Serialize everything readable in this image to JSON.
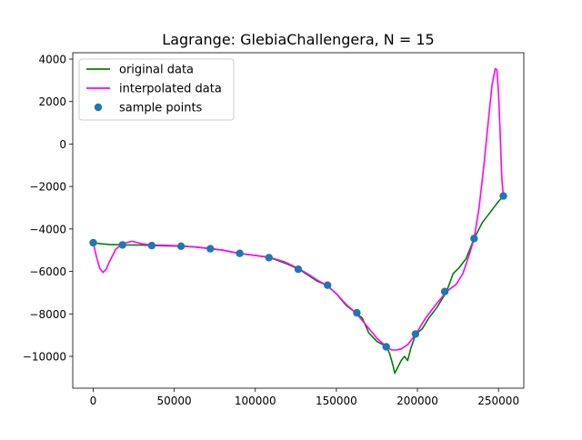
{
  "chart_data": {
    "type": "line",
    "title": "Lagrange: GlebiaChallengera, N = 15",
    "xlabel": "",
    "ylabel": "",
    "xlim": [
      -12600,
      265600
    ],
    "ylim": [
      -11500,
      4300
    ],
    "grid": false,
    "legend_position": "top-left",
    "x_ticks": [
      0,
      50000,
      100000,
      150000,
      200000,
      250000
    ],
    "x_tick_labels": [
      "0",
      "50000",
      "100000",
      "150000",
      "200000",
      "250000"
    ],
    "y_ticks": [
      4000,
      2000,
      0,
      -2000,
      -4000,
      -6000,
      -8000,
      -10000
    ],
    "y_tick_labels": [
      "4000",
      "2000",
      "0",
      "−2000",
      "−4000",
      "−6000",
      "−8000",
      "−10000"
    ],
    "series": [
      {
        "name": "original data",
        "kind": "line",
        "color": "#008000",
        "x": [
          0,
          5000,
          10000,
          18000,
          30000,
          36000,
          45000,
          54000,
          63000,
          72000,
          80000,
          90000,
          100000,
          109000,
          118000,
          127000,
          133000,
          138000,
          144000,
          150000,
          156000,
          162000,
          166000,
          170000,
          175000,
          181000,
          183000,
          185000,
          186000,
          188000,
          190000,
          192000,
          194000,
          196000,
          199000,
          203000,
          207000,
          212000,
          218000,
          222000,
          226000,
          230000,
          235000,
          240000,
          245000,
          250000,
          253000
        ],
        "y": [
          -4650,
          -4700,
          -4730,
          -4750,
          -4760,
          -4780,
          -4800,
          -4810,
          -4850,
          -4930,
          -5000,
          -5150,
          -5250,
          -5350,
          -5600,
          -5900,
          -6200,
          -6450,
          -6650,
          -7050,
          -7600,
          -7950,
          -8200,
          -8900,
          -9300,
          -9550,
          -9900,
          -10450,
          -10800,
          -10500,
          -10200,
          -10000,
          -10200,
          -9600,
          -8950,
          -8700,
          -8200,
          -7700,
          -6950,
          -6100,
          -5800,
          -5400,
          -4450,
          -3700,
          -3200,
          -2700,
          -2450
        ]
      },
      {
        "name": "interpolated data",
        "kind": "line",
        "color": "#ff00ff",
        "x": [
          0,
          2000,
          4000,
          6000,
          8000,
          10000,
          14000,
          18000,
          24000,
          30000,
          36000,
          45000,
          54000,
          63000,
          72000,
          80000,
          90000,
          100000,
          109000,
          118000,
          127000,
          133000,
          138000,
          144000,
          150000,
          156000,
          162000,
          168000,
          175000,
          181000,
          184000,
          187000,
          190000,
          194000,
          199000,
          205000,
          212000,
          218000,
          224000,
          228000,
          232000,
          235000,
          238000,
          241000,
          244000,
          246000,
          248000,
          249000,
          250000,
          251000,
          252000,
          253000
        ],
        "y": [
          -4650,
          -5300,
          -5850,
          -6050,
          -5900,
          -5550,
          -4950,
          -4700,
          -4580,
          -4700,
          -4760,
          -4770,
          -4800,
          -4850,
          -4920,
          -5000,
          -5150,
          -5250,
          -5340,
          -5550,
          -5880,
          -6150,
          -6400,
          -6650,
          -7050,
          -7550,
          -7950,
          -8500,
          -9150,
          -9550,
          -9700,
          -9700,
          -9650,
          -9450,
          -8950,
          -8200,
          -7500,
          -6950,
          -6600,
          -6100,
          -5200,
          -4450,
          -3000,
          -1000,
          1300,
          2800,
          3550,
          3500,
          2400,
          500,
          -1600,
          -2450
        ]
      },
      {
        "name": "sample points",
        "kind": "scatter",
        "color": "#1f77b4",
        "x": [
          0,
          18071,
          36143,
          54214,
          72286,
          90357,
          108429,
          126500,
          144571,
          162643,
          180714,
          198786,
          216857,
          234929,
          253000
        ],
        "y": [
          -4650,
          -4750,
          -4780,
          -4810,
          -4930,
          -5150,
          -5350,
          -5900,
          -6650,
          -7950,
          -9550,
          -8950,
          -6950,
          -4450,
          -2450
        ]
      }
    ]
  }
}
